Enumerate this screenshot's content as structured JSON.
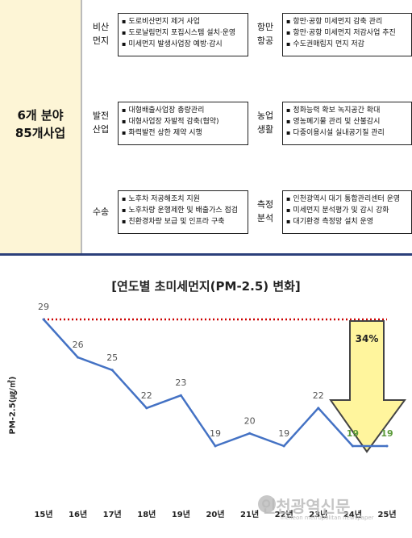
{
  "summary": {
    "left_label_line1": "6개 분야",
    "left_label_line2": "85개사업",
    "rows": [
      {
        "cat1": "비산\n먼지",
        "items1": [
          "도로비산먼지 제거 사업",
          "도로날림먼지 포집시스템 설치·운영",
          "미세먼지 발생사업장 예방·감시"
        ],
        "cat2": "항만\n항공",
        "items2": [
          "항만·공항 미세먼지 감축 관리",
          "항만·공항 미세먼지 저감사업 추진",
          "수도권매립지 먼지 저감"
        ]
      },
      {
        "cat1": "발전\n산업",
        "items1": [
          "대형배출사업장 총량관리",
          "대형사업장 자발적 감축(협약)",
          "화력발전 상한 제약 시행"
        ],
        "cat2": "농업\n생활",
        "items2": [
          "정화능력 확보 녹지공간 확대",
          "영농폐기물 관리 및 산불감시",
          "다중이용시설 실내공기질 관리"
        ]
      },
      {
        "cat1": "수송",
        "items1": [
          "노후차 저공해조치 지원",
          "노후차량 운행제한 및 배출가스 점검",
          "친환경차량 보급 및 인프라 구축"
        ],
        "cat2": "측정\n분석",
        "items2": [
          "인천광역시 대기 통합관리센터 운영",
          "미세먼지 분석평가 및 감시 강화",
          "대기환경 측정망 설치 운영"
        ]
      }
    ]
  },
  "chart_data": {
    "type": "line",
    "title": "[연도별 초미세먼지(PM-2.5) 변화]",
    "ylabel": "PM-2.5(㎍/㎥)",
    "categories": [
      "15년",
      "16년",
      "17년",
      "18년",
      "19년",
      "20년",
      "21년",
      "22년",
      "23년",
      "24년",
      "25년"
    ],
    "values": [
      29,
      26,
      25,
      22,
      23,
      19,
      20,
      19,
      22,
      19,
      19
    ],
    "highlight_labels": [
      "24년",
      "25년"
    ],
    "reference_line": 29,
    "annotation": "34%",
    "ylim": [
      16,
      31
    ],
    "colors": {
      "line": "#4472c4",
      "reference": "#cc0000",
      "arrow_fill": "#fff59d",
      "arrow_stroke": "#444444",
      "highlight": "#5b9b3a",
      "label": "#555555"
    }
  },
  "watermark": {
    "text": "인천광역신문",
    "sub": "incheon metropolitan newspaper"
  }
}
